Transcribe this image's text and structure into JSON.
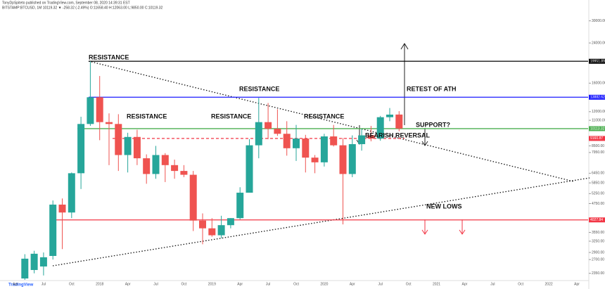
{
  "chart_data": {
    "type": "candlestick",
    "header": "TonyDpSpiteto published on TradingView.com, September 08, 2020 14:39:31 EST",
    "symbol": "BITSTAMP:BTCUSD, 1M  10119.32  ▼ -258.32 (-2.49%)  O:11658.40  H:12063.00  L:9850.00  C:10119.32",
    "footer": "TradingView",
    "log_scale": true,
    "grid": false,
    "up_color": "#26a69a",
    "down_color": "#ef5350",
    "categories": [
      "Apr",
      null,
      null,
      "Jul",
      null,
      null,
      "Oct",
      null,
      null,
      "2018",
      null,
      null,
      "Apr",
      null,
      null,
      "Jul",
      null,
      null,
      "Oct",
      null,
      null,
      "2019",
      null,
      null,
      "Apr",
      null,
      null,
      "Jul",
      null,
      null,
      "Oct",
      null,
      null,
      "2020",
      null,
      null,
      "Apr",
      null,
      null,
      "Jul",
      null,
      null,
      "Oct",
      null,
      null,
      "2021",
      null,
      null,
      "Apr",
      null,
      null,
      "Jul",
      null,
      null,
      "Oct",
      null,
      null,
      "2022",
      null,
      null,
      "Apr"
    ],
    "open": [
      null,
      2231,
      2430,
      2518,
      2800,
      4700,
      4340,
      6450,
      10600,
      13880,
      10800,
      10600,
      7750,
      9300,
      7500,
      6400,
      7750,
      7000,
      6600,
      6350,
      4000,
      3700,
      3450,
      3820,
      4100,
      5300,
      8550,
      10800,
      10100,
      9600,
      8300,
      9150,
      7550,
      7200,
      9350,
      8550,
      6400,
      8650,
      9450,
      9150,
      11350,
      11658.4,
      null,
      null,
      null,
      null,
      null,
      null,
      null,
      null,
      null,
      null,
      null,
      null,
      null,
      null,
      null,
      null,
      null,
      null,
      null
    ],
    "high": [
      null,
      2850,
      2950,
      2900,
      4900,
      5000,
      6500,
      11400,
      19950,
      17200,
      11800,
      11700,
      9700,
      10000,
      7800,
      8500,
      7900,
      7400,
      7000,
      6600,
      4300,
      4100,
      4200,
      4100,
      5600,
      9100,
      13800,
      13100,
      12300,
      10900,
      10500,
      9500,
      7750,
      9600,
      10500,
      9200,
      9450,
      10100,
      10400,
      11500,
      12450,
      12063,
      null,
      null,
      null,
      null,
      null,
      null,
      null,
      null,
      null,
      null,
      null,
      null,
      null,
      null,
      null,
      null,
      null,
      null,
      null
    ],
    "low": [
      null,
      2200,
      2350,
      2300,
      2700,
      3000,
      4100,
      5500,
      10400,
      9000,
      7000,
      6600,
      6500,
      7000,
      5800,
      6100,
      5900,
      6100,
      6200,
      3600,
      3150,
      3400,
      3350,
      3700,
      4050,
      5300,
      7500,
      9100,
      9400,
      7700,
      7300,
      6500,
      6450,
      6900,
      8450,
      3850,
      6200,
      8100,
      8900,
      8950,
      10900,
      9850,
      null,
      null,
      null,
      null,
      null,
      null,
      null,
      null,
      null,
      null,
      null,
      null,
      null,
      null,
      null,
      null,
      null,
      null,
      null
    ],
    "close": [
      null,
      2724,
      2863,
      2763,
      4700,
      4340,
      6450,
      10600,
      13880,
      10800,
      10600,
      7750,
      9300,
      7500,
      6400,
      7750,
      7000,
      6600,
      6350,
      4000,
      3700,
      3450,
      3820,
      4100,
      5300,
      8550,
      10800,
      10100,
      9600,
      8300,
      9150,
      7550,
      7200,
      9350,
      8550,
      6400,
      8650,
      9450,
      9150,
      11350,
      11650,
      10119.32,
      null,
      null,
      null,
      null,
      null,
      null,
      null,
      null,
      null,
      null,
      null,
      null,
      null,
      null,
      null,
      null,
      null,
      null,
      null
    ],
    "ylim": [
      2200,
      34000
    ],
    "yticks": [
      {
        "value": 30000,
        "label": "30000.00"
      },
      {
        "value": 24000,
        "label": "24000.00"
      },
      {
        "value": 16000,
        "label": "16000.00"
      },
      {
        "value": 12000,
        "label": "12000.00"
      },
      {
        "value": 11000,
        "label": "11000.00"
      },
      {
        "value": 8500,
        "label": "8500.00"
      },
      {
        "value": 7950,
        "label": "7950.00"
      },
      {
        "value": 6450,
        "label": "6450.00"
      },
      {
        "value": 5850,
        "label": "5850.00"
      },
      {
        "value": 5250,
        "label": "5250.00"
      },
      {
        "value": 4750,
        "label": "4750.00"
      },
      {
        "value": 3550,
        "label": "3550.00"
      },
      {
        "value": 3250,
        "label": "3250.00"
      },
      {
        "value": 2900,
        "label": "2900.00"
      },
      {
        "value": 2700,
        "label": "2700.00"
      },
      {
        "value": 2350,
        "label": "2350.00"
      }
    ],
    "levels": [
      {
        "value": 19951.89,
        "color": "#000000",
        "style": "solid"
      },
      {
        "value": 13882.62,
        "color": "#1a1aff",
        "style": "solid"
      },
      {
        "value": 10113.32,
        "color": "#4caf50",
        "style": "solid"
      },
      {
        "value": 9160.87,
        "color": "#f23645",
        "style": "dashed"
      },
      {
        "value": 4027.84,
        "color": "#f23645",
        "style": "solid"
      }
    ],
    "annotations": [
      "RESISTANCE",
      "RESISTANCE",
      "RESISTANCE",
      "RESISTANCE",
      "RESISTANCE",
      "RETEST OF ATH",
      "SUPPORT?",
      "BEARISH REVERSAL",
      "NEW LOWS"
    ]
  }
}
